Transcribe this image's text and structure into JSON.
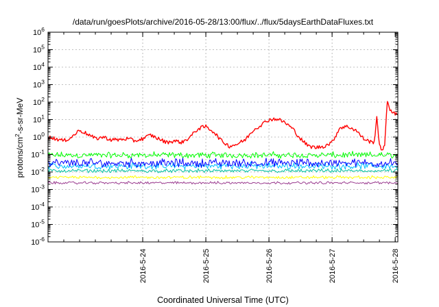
{
  "chart_data": {
    "type": "line",
    "title": "/data/run/goesPlots/archive/2016-05-28/13:00/flux/../flux/5daysEarthDataFluxes.txt",
    "xlabel": "Coordinated Universal Time (UTC)",
    "ylabel_parts": {
      "base": "protons/cm",
      "sup": "2",
      "rest": "-s-sr-MeV"
    },
    "yscale": "log",
    "ylim_exp": [
      -6,
      6
    ],
    "ytick_exponents": [
      -6,
      -5,
      -4,
      -3,
      -2,
      -1,
      0,
      1,
      2,
      3,
      4,
      5,
      6
    ],
    "ytick_base": "10",
    "xlim": [
      "2016-05-23 00:00",
      "2016-05-28 13:00"
    ],
    "xticks": [
      {
        "label": "2016-5-24",
        "date": "2016-05-24 12:00"
      },
      {
        "label": "2016-5-25",
        "date": "2016-05-25 12:00"
      },
      {
        "label": "2016-5-26",
        "date": "2016-05-26 12:00"
      },
      {
        "label": "2016-5-27",
        "date": "2016-05-27 12:00"
      },
      {
        "label": "2016-5-28",
        "date": "2016-05-28 12:00"
      }
    ],
    "grid": true,
    "series": [
      {
        "color": "#ff0000",
        "x": [
          "2016-05-23 00:00",
          "2016-05-23 03:00",
          "2016-05-23 06:00",
          "2016-05-23 09:00",
          "2016-05-23 12:00",
          "2016-05-23 15:00",
          "2016-05-23 18:00",
          "2016-05-23 21:00",
          "2016-05-24 00:00",
          "2016-05-24 03:00",
          "2016-05-24 06:00",
          "2016-05-24 09:00",
          "2016-05-24 12:00",
          "2016-05-24 15:00",
          "2016-05-24 18:00",
          "2016-05-24 21:00",
          "2016-05-25 00:00",
          "2016-05-25 03:00",
          "2016-05-25 06:00",
          "2016-05-25 09:00",
          "2016-05-25 12:00",
          "2016-05-25 15:00",
          "2016-05-25 18:00",
          "2016-05-25 21:00",
          "2016-05-26 00:00",
          "2016-05-26 03:00",
          "2016-05-26 06:00",
          "2016-05-26 09:00",
          "2016-05-26 12:00",
          "2016-05-26 15:00",
          "2016-05-26 18:00",
          "2016-05-26 21:00",
          "2016-05-27 00:00",
          "2016-05-27 03:00",
          "2016-05-27 06:00",
          "2016-05-27 09:00",
          "2016-05-27 12:00",
          "2016-05-27 15:00",
          "2016-05-27 18:00",
          "2016-05-27 21:00",
          "2016-05-28 00:00",
          "2016-05-28 03:00",
          "2016-05-28 04:00",
          "2016-05-28 05:00",
          "2016-05-28 06:00",
          "2016-05-28 07:00",
          "2016-05-28 08:00",
          "2016-05-28 09:00",
          "2016-05-28 10:00",
          "2016-05-28 12:00",
          "2016-05-28 13:00"
        ],
        "y": [
          1.0,
          0.8,
          0.6,
          1.0,
          2.5,
          1.5,
          0.8,
          1.0,
          0.7,
          0.7,
          0.8,
          0.6,
          0.8,
          1.3,
          0.8,
          0.5,
          0.6,
          0.5,
          1.0,
          3.0,
          4.0,
          2.0,
          0.6,
          0.3,
          0.4,
          0.7,
          2.5,
          5.0,
          10,
          11,
          7,
          3,
          0.8,
          0.3,
          0.25,
          0.3,
          0.5,
          3.5,
          4.0,
          2.5,
          0.8,
          0.5,
          0.5,
          15,
          0.3,
          0.2,
          0.3,
          120,
          40,
          20,
          20
        ]
      },
      {
        "color": "#00ff00",
        "x": [
          "2016-05-23 00:00",
          "2016-05-28 13:00"
        ],
        "y": [
          0.1,
          0.1
        ],
        "spread": [
          0.06,
          0.16
        ]
      },
      {
        "color": "#0000ff",
        "x": [
          "2016-05-23 00:00",
          "2016-05-28 13:00"
        ],
        "y": [
          0.035,
          0.035
        ],
        "spread": [
          0.018,
          0.07
        ]
      },
      {
        "color": "#00bfff",
        "x": [
          "2016-05-23 00:00",
          "2016-05-28 13:00"
        ],
        "y": [
          0.025,
          0.025
        ],
        "spread": [
          0.014,
          0.04
        ]
      },
      {
        "color": "#00c0a0",
        "x": [
          "2016-05-23 00:00",
          "2016-05-28 13:00"
        ],
        "y": [
          0.012,
          0.012
        ],
        "spread": [
          0.009,
          0.016
        ]
      },
      {
        "color": "#ffff00",
        "x": [
          "2016-05-23 00:00",
          "2016-05-28 13:00"
        ],
        "y": [
          0.005,
          0.005
        ],
        "spread": [
          0.004,
          0.0065
        ]
      },
      {
        "color": "#9a3b8f",
        "x": [
          "2016-05-23 00:00",
          "2016-05-28 13:00"
        ],
        "y": [
          0.0025,
          0.0025
        ],
        "spread": [
          0.002,
          0.003
        ]
      }
    ]
  }
}
